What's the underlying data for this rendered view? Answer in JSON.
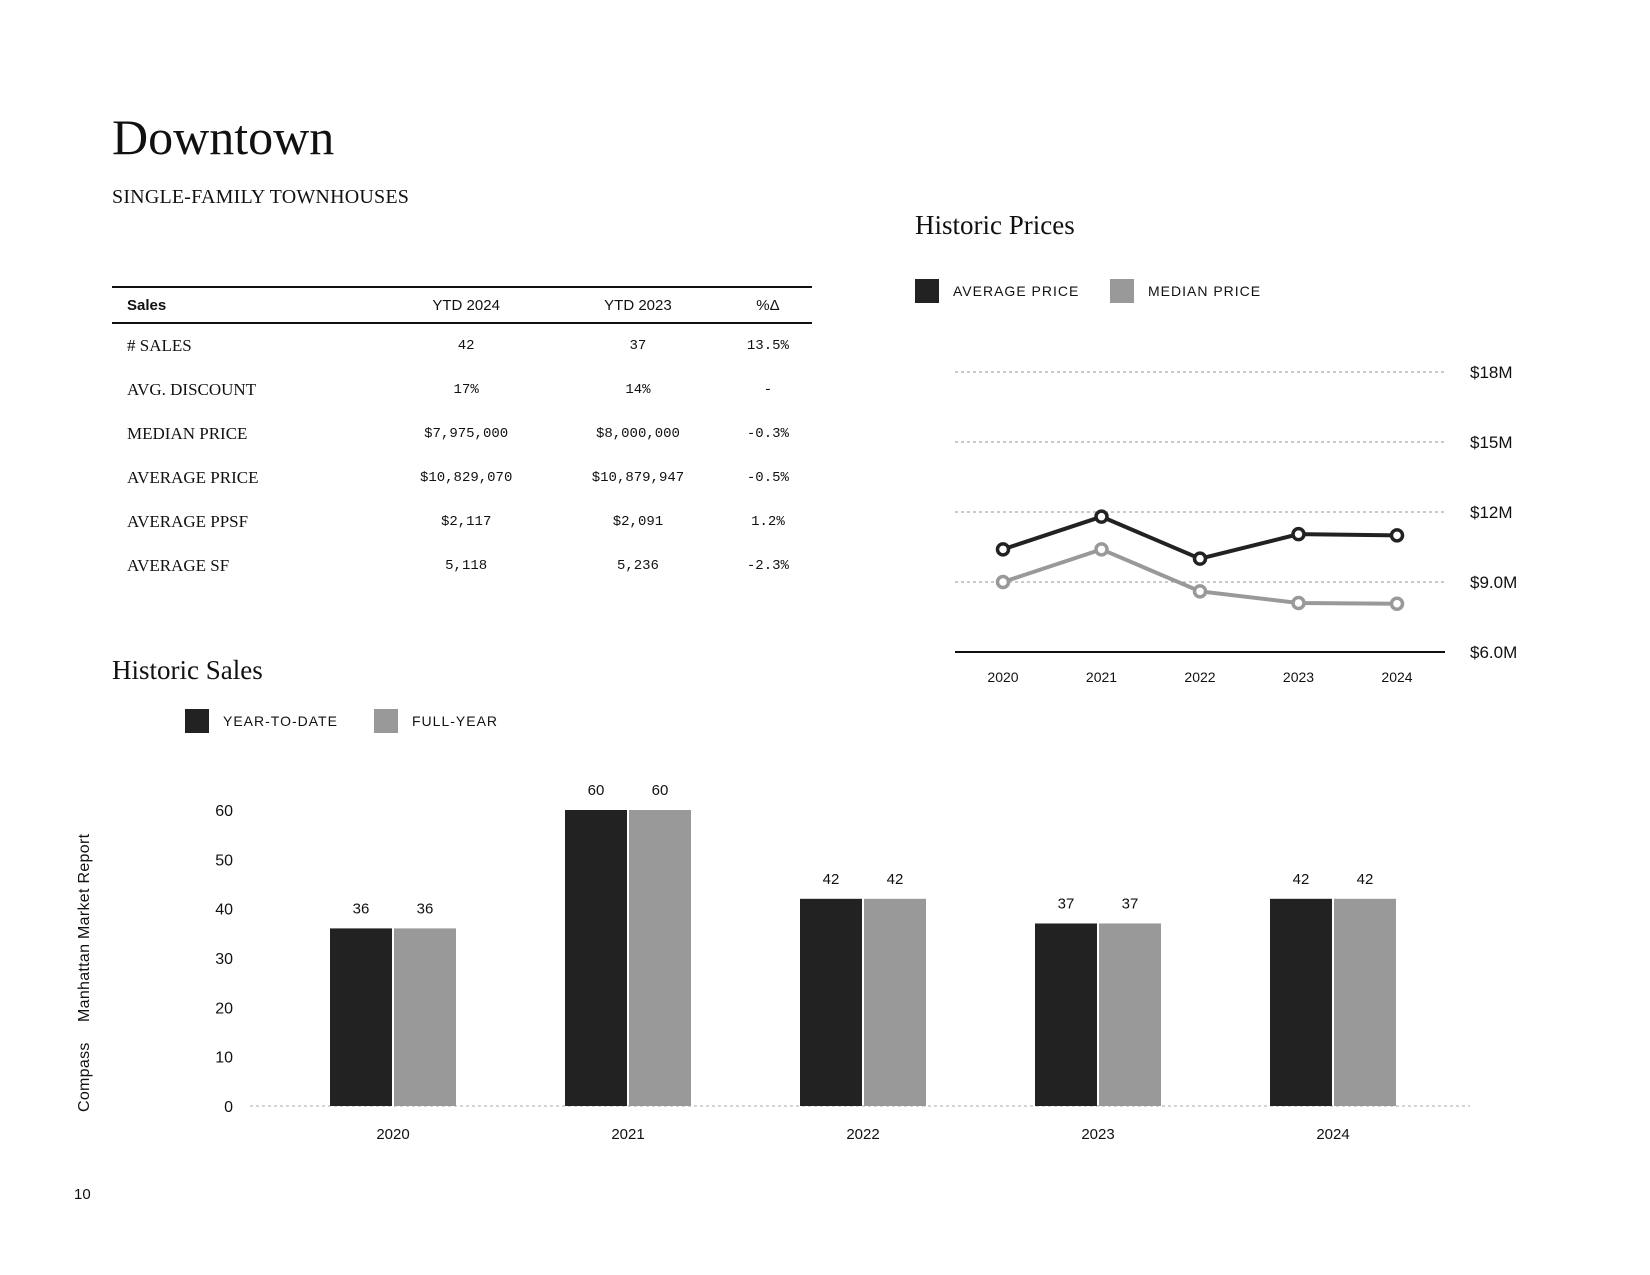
{
  "page": {
    "title": "Downtown",
    "subtitle": "SINGLE-FAMILY TOWNHOUSES",
    "page_number": "10",
    "side_brand": "Compass",
    "side_report": "Manhattan Market Report"
  },
  "table": {
    "headers": [
      "Sales",
      "YTD 2024",
      "YTD 2023",
      "%Δ"
    ],
    "rows": [
      [
        "# SALES",
        "42",
        "37",
        "13.5%"
      ],
      [
        "AVG. DISCOUNT",
        "17%",
        "14%",
        "-"
      ],
      [
        "MEDIAN PRICE",
        "$7,975,000",
        "$8,000,000",
        "-0.3%"
      ],
      [
        "AVERAGE PRICE",
        "$10,829,070",
        "$10,879,947",
        "-0.5%"
      ],
      [
        "AVERAGE PPSF",
        "$2,117",
        "$2,091",
        "1.2%"
      ],
      [
        "AVERAGE SF",
        "5,118",
        "5,236",
        "-2.3%"
      ]
    ]
  },
  "colors": {
    "dark": "#222222",
    "light": "#999999",
    "grid": "#aaaaaa"
  },
  "chart_data": [
    {
      "type": "line",
      "title": "Historic Prices",
      "x": [
        "2020",
        "2021",
        "2022",
        "2023",
        "2024"
      ],
      "series": [
        {
          "name": "AVERAGE PRICE",
          "values": [
            10.4,
            11.8,
            10.0,
            11.05,
            11.0
          ]
        },
        {
          "name": "MEDIAN PRICE",
          "values": [
            9.0,
            10.4,
            8.6,
            8.1,
            8.07
          ]
        }
      ],
      "y_ticks": [
        "$6.0M",
        "$9.0M",
        "$12M",
        "$15M",
        "$18M"
      ],
      "y_tick_values": [
        6,
        9,
        12,
        15,
        18
      ],
      "ylim": [
        6,
        18
      ],
      "legend": "top-left",
      "grid": true
    },
    {
      "type": "bar",
      "title": "Historic Sales",
      "categories": [
        "2020",
        "2021",
        "2022",
        "2023",
        "2024"
      ],
      "series": [
        {
          "name": "YEAR-TO-DATE",
          "values": [
            36,
            60,
            42,
            37,
            42
          ]
        },
        {
          "name": "FULL-YEAR",
          "values": [
            36,
            60,
            42,
            37,
            42
          ]
        }
      ],
      "y_ticks": [
        0,
        10,
        20,
        30,
        40,
        50,
        60
      ],
      "ylim": [
        0,
        60
      ],
      "legend": "top-left",
      "grid": false
    }
  ]
}
